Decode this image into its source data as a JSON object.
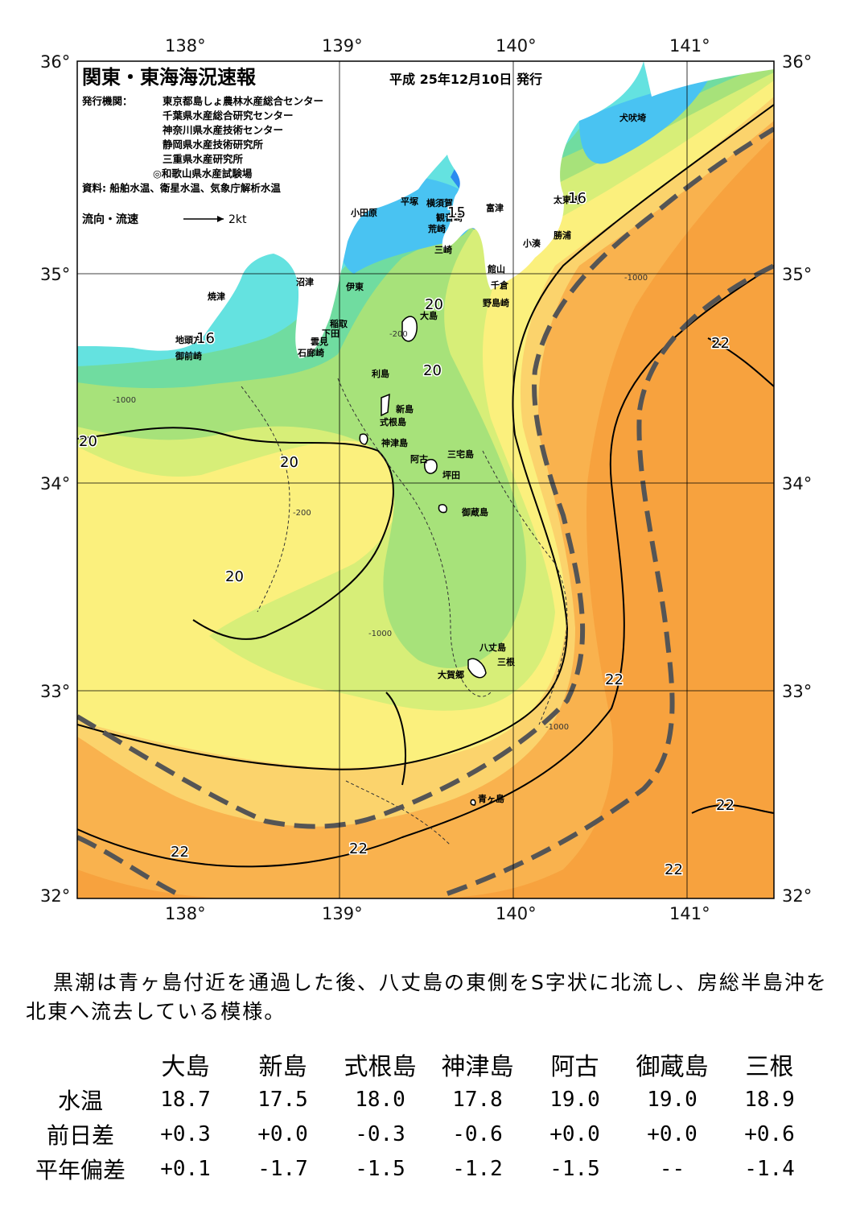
{
  "map": {
    "title": "関東・東海海況速報",
    "issue_date": "平成 25年12月10日 発行",
    "issuers_label": "発行機関：",
    "issuers": [
      "東京都島しょ農林水産総合センター",
      "千葉県水産総合研究センター",
      "神奈川県水産技術センター",
      "静岡県水産技術研究所",
      "三重県水産研究所",
      "◎和歌山県水産試験場"
    ],
    "sources": "資料: 船舶水温、衛星水温、気象庁解析水温",
    "current_legend": {
      "label": "流向・流速",
      "unit": "2kt"
    },
    "longitude_labels": [
      "138°",
      "139°",
      "140°",
      "141°"
    ],
    "latitude_labels": [
      "36°",
      "35°",
      "34°",
      "33°",
      "32°"
    ],
    "places": {
      "inubozaki": "犬吠埼",
      "taito": "太東崎",
      "katsuura": "勝浦",
      "kominato": "小湊",
      "futtsu": "富津",
      "tateyama": "館山",
      "chikura": "千倉",
      "nojimazaki": "野島崎",
      "kannonzaki": "観音崎",
      "yokosuka": "横須賀",
      "hiratsuka": "平塚",
      "odawara": "小田原",
      "araizaki": "荒崎",
      "misaki": "三崎",
      "numazu": "沼津",
      "ito": "伊東",
      "inatori": "稲取",
      "shimoda": "下田",
      "mera": "雲見",
      "irozaki": "石廊崎",
      "yaizu": "焼津",
      "jitozaki": "地頭方",
      "omaezaki": "御前崎",
      "oshima": "大島",
      "toshima": "利島",
      "niijima": "新島",
      "shikinejima": "式根島",
      "kozushima": "神津島",
      "ako": "阿古",
      "miyakejima": "三宅島",
      "tsubota": "坪田",
      "mikurajima": "御蔵島",
      "hachijojima": "八丈島",
      "mitsune": "三根",
      "okago": "大賀郷",
      "aogashima": "青ヶ島"
    },
    "isotherms": {
      "t15": "15",
      "t16a": "16",
      "t16b": "16",
      "t20a": "20",
      "t20b": "20",
      "t20c": "20",
      "t20d": "20",
      "t20e": "20",
      "t22a": "22",
      "t22b": "22",
      "t22c": "22",
      "t22d": "22",
      "t22e": "22",
      "t22f": "22"
    },
    "depth_labels": {
      "d200": "-200",
      "d1000": "-1000"
    },
    "colors": {
      "t23": "#f7a23e",
      "t22": "#f9b24e",
      "t21": "#fbd36c",
      "t20": "#fbf07d",
      "t19": "#d7ee78",
      "t18": "#a7e27a",
      "t17": "#70dca0",
      "t16": "#64e2e0",
      "t15": "#49c3f2",
      "cold": "#2b8bf0",
      "land": "#ffffff",
      "kuroshio_axis": "#555555"
    }
  },
  "summary": "黒潮は青ヶ島付近を通過した後、八丈島の東側をS字状に北流し、房総半島沖を北東へ流去している模様。",
  "table": {
    "columns": [
      "大島",
      "新島",
      "式根島",
      "神津島",
      "阿古",
      "御蔵島",
      "三根"
    ],
    "rows": [
      {
        "label": "水温",
        "values": [
          "18.7",
          "17.5",
          "18.0",
          "17.8",
          "19.0",
          "19.0",
          "18.9"
        ]
      },
      {
        "label": "前日差",
        "values": [
          "+0.3",
          "+0.0",
          "-0.3",
          "-0.6",
          "+0.0",
          "+0.0",
          "+0.6"
        ]
      },
      {
        "label": "平年偏差",
        "values": [
          "+0.1",
          "-1.7",
          "-1.5",
          "-1.2",
          "-1.5",
          "--",
          "-1.4"
        ]
      }
    ]
  }
}
